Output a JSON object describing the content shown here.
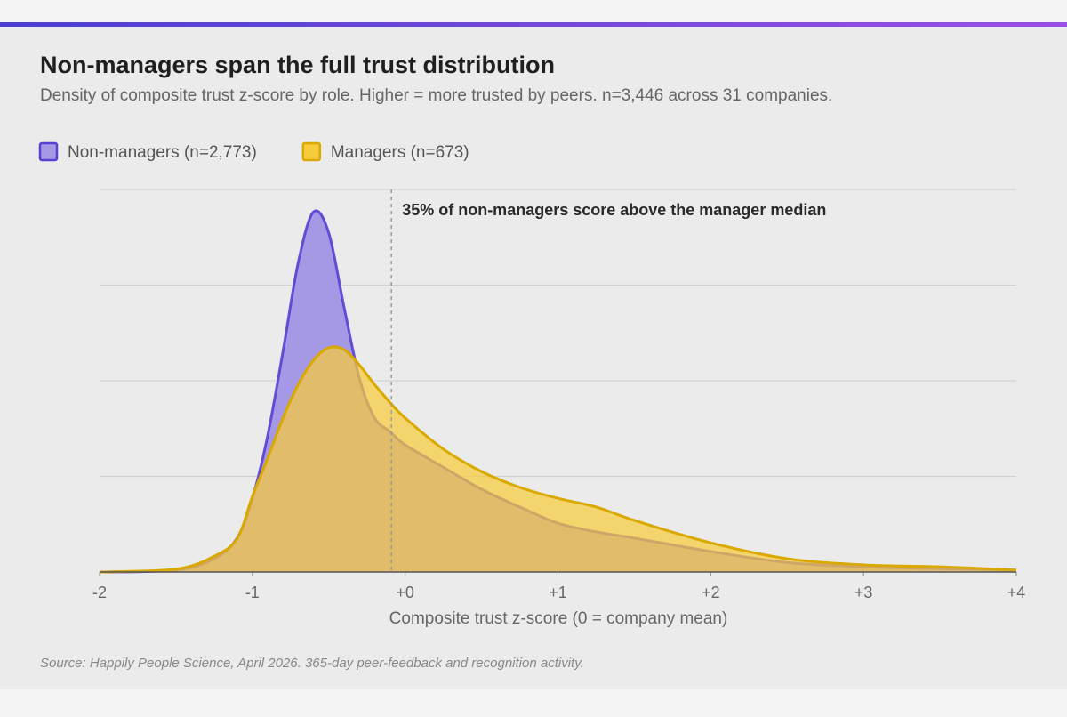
{
  "chart_data": {
    "type": "area",
    "title": "Non-managers span the full trust distribution",
    "subtitle": "Density of composite trust z-score by role. Higher = more trusted by peers. n=3,446 across 31 companies.",
    "x_label": "Composite trust z-score (0 = company mean)",
    "source": "Source: Happily People Science, April 2026. 365-day peer-feedback and recognition activity.",
    "annotation": {
      "x": -0.09,
      "text": "35% of non-managers score above the manager median"
    },
    "x": [
      -2,
      -1.5,
      -1.25,
      -1.1,
      -1,
      -0.9,
      -0.8,
      -0.7,
      -0.6,
      -0.5,
      -0.4,
      -0.3,
      -0.2,
      -0.1,
      0,
      0.25,
      0.5,
      0.75,
      1,
      1.25,
      1.5,
      2,
      2.5,
      3,
      3.5,
      4
    ],
    "series": [
      {
        "name": "Non-managers (n=2,773)",
        "color": "#5a3fd1",
        "fill": "#a598e4",
        "values": [
          0,
          0.004,
          0.028,
          0.071,
          0.154,
          0.285,
          0.461,
          0.647,
          0.753,
          0.709,
          0.554,
          0.406,
          0.322,
          0.294,
          0.266,
          0.219,
          0.173,
          0.136,
          0.102,
          0.084,
          0.071,
          0.043,
          0.02,
          0.011,
          0.007,
          0.004
        ]
      },
      {
        "name": "Managers (n=673)",
        "color": "#d9a900",
        "fill": "#f6cb3c",
        "values": [
          0,
          0.006,
          0.033,
          0.07,
          0.158,
          0.238,
          0.322,
          0.392,
          0.443,
          0.469,
          0.465,
          0.433,
          0.392,
          0.355,
          0.322,
          0.257,
          0.21,
          0.177,
          0.154,
          0.136,
          0.108,
          0.061,
          0.028,
          0.015,
          0.011,
          0.004
        ]
      }
    ],
    "xlim": [
      -2,
      4
    ],
    "xticks": [
      {
        "value": -2,
        "label": "-2"
      },
      {
        "value": -1,
        "label": "-1"
      },
      {
        "value": 0,
        "label": "+0"
      },
      {
        "value": 1,
        "label": "+1"
      },
      {
        "value": 2,
        "label": "+2"
      },
      {
        "value": 3,
        "label": "+3"
      },
      {
        "value": 4,
        "label": "+4"
      }
    ],
    "ylim": [
      0,
      0.8
    ],
    "yticks": [
      0,
      0.2,
      0.4,
      0.6,
      0.8
    ],
    "grid": true
  }
}
